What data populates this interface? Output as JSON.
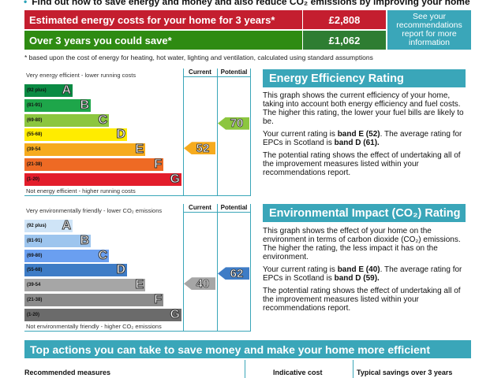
{
  "heading": "Find out how to save energy and money and also reduce CO₂ emissions by improving your home",
  "summary": {
    "cost_label": "Estimated energy costs for your home for 3 years*",
    "cost_value": "£2,808",
    "save_label": "Over 3 years you could save*",
    "save_value": "£1,062",
    "info": "See your recommendations report for more information",
    "footnote": "* based upon the cost of energy for heating, hot water, lighting and ventilation, calculated using standard assumptions"
  },
  "energy_chart": {
    "top_label": "Very energy efficient - lower running costs",
    "bottom_label": "Not energy efficient - higher running costs",
    "current_header": "Current",
    "potential_header": "Potential",
    "bands": [
      {
        "range": "(92 plus)",
        "letter": "A",
        "color": "#0a8a43"
      },
      {
        "range": "(81-91)",
        "letter": "B",
        "color": "#1ea64a"
      },
      {
        "range": "(69-80)",
        "letter": "C",
        "color": "#8cc63f"
      },
      {
        "range": "(55-68)",
        "letter": "D",
        "color": "#ffec00"
      },
      {
        "range": "(39-54",
        "letter": "E",
        "color": "#f6ab1e"
      },
      {
        "range": "(21-38)",
        "letter": "F",
        "color": "#ee6a24"
      },
      {
        "range": "(1-20)",
        "letter": "G",
        "color": "#e31d2b"
      }
    ],
    "current": {
      "value": "52",
      "band_index": 4,
      "color": "#f6ab1e"
    },
    "potential": {
      "value": "70",
      "band_index": 2,
      "color": "#8cc63f"
    }
  },
  "env_chart": {
    "top_label": "Very environmentally friendly - lower CO₂ emissions",
    "bottom_label": "Not environmentally friendly - higher CO₂ emissions",
    "current_header": "Current",
    "potential_header": "Potential",
    "bands": [
      {
        "range": "(92 plus)",
        "letter": "A",
        "color": "#cfe4f7"
      },
      {
        "range": "(81-91)",
        "letter": "B",
        "color": "#9dc5ee"
      },
      {
        "range": "(69-80)",
        "letter": "C",
        "color": "#6a9ff0"
      },
      {
        "range": "(55-68)",
        "letter": "D",
        "color": "#3e7cc6"
      },
      {
        "range": "(39-54",
        "letter": "E",
        "color": "#a6a6a6"
      },
      {
        "range": "(21-38)",
        "letter": "F",
        "color": "#8b8b8b"
      },
      {
        "range": "(1-20)",
        "letter": "G",
        "color": "#6b6b6b"
      }
    ],
    "current": {
      "value": "40",
      "band_index": 4,
      "color": "#a6a6a6"
    },
    "potential": {
      "value": "62",
      "band_index": 3,
      "color": "#3e7cc6"
    }
  },
  "energy_panel": {
    "title": "Energy Efficiency Rating",
    "p1": "This graph shows the current efficiency of your home, taking into account both energy efficiency and fuel costs. The higher this rating, the lower your fuel bills are likely to be.",
    "p2a": "Your current rating is ",
    "p2b": "band E (52)",
    "p2c": ". The average rating for EPCs in Scotland is ",
    "p2d": "band D (61).",
    "p3": "The potential rating shows the effect of undertaking all of the improvement measures listed within your recommendations report."
  },
  "env_panel": {
    "title": "Environmental Impact (CO₂) Rating",
    "p1": "This graph shows the effect of your home on the environment in terms of carbon dioxide (CO₂) emissions. The higher the rating, the less impact it has on the environment.",
    "p2a": "Your current rating is ",
    "p2b": "band E (40)",
    "p2c": ". The average rating for EPCs in Scotland is ",
    "p2d": "band D (59).",
    "p3": "The potential rating shows the effect of undertaking all of the improvement measures listed within your recommendations report."
  },
  "actions": {
    "title": "Top actions you can take to save money and make your home more efficient",
    "col1": "Recommended measures",
    "col2": "Indicative cost",
    "col3": "Typical savings over 3 years"
  }
}
